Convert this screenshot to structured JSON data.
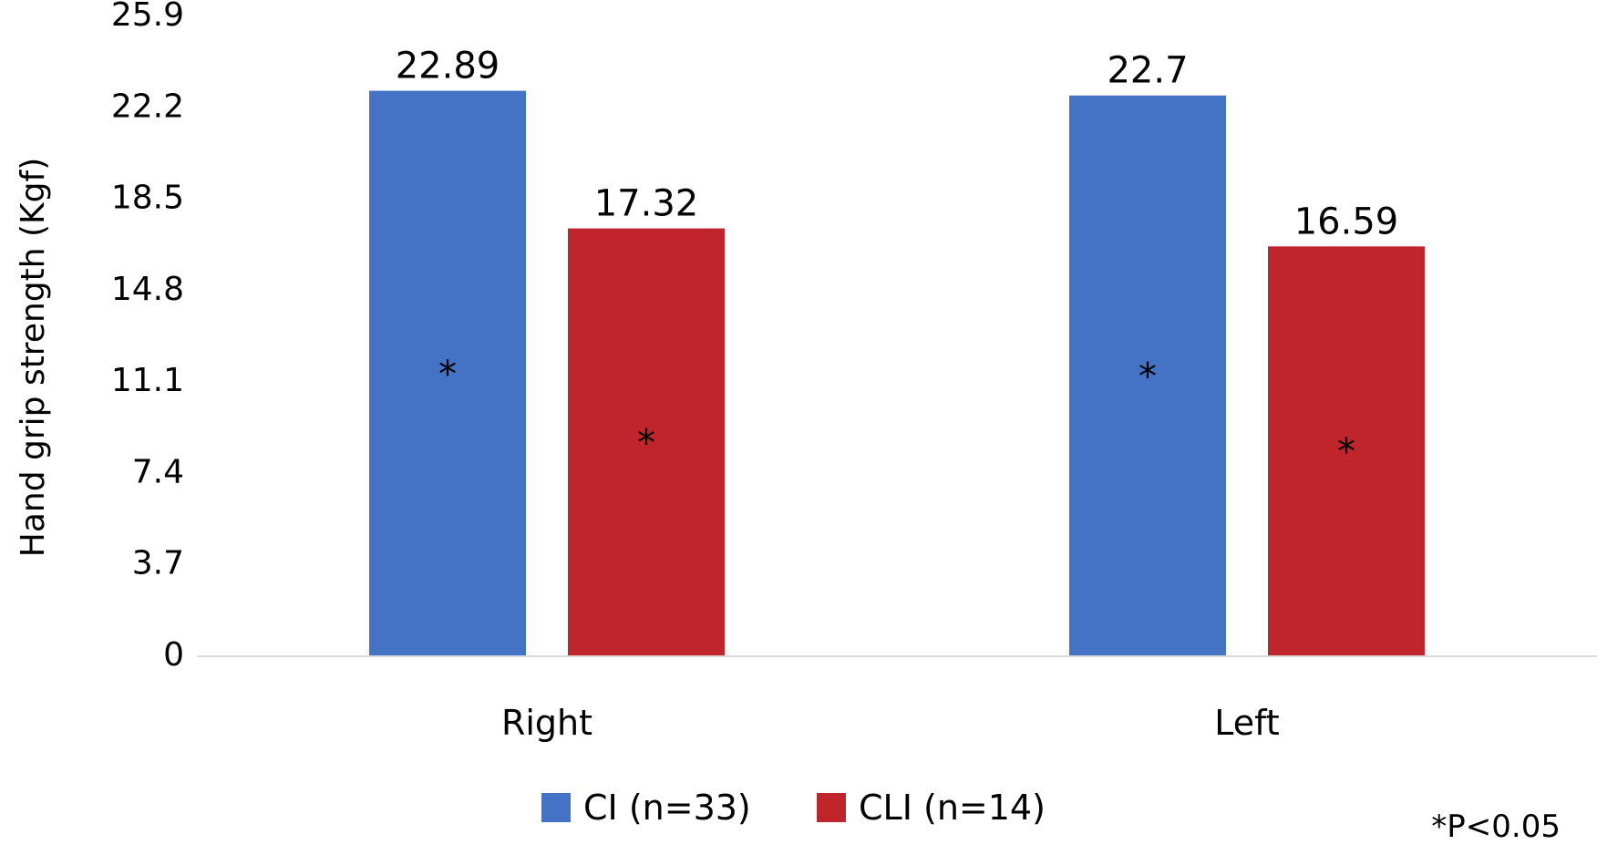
{
  "chart_data": {
    "type": "bar",
    "categories": [
      "Right",
      "Left"
    ],
    "series": [
      {
        "name": "CI (n=33)",
        "color": "#4472C4",
        "values": [
          22.89,
          22.7
        ],
        "labels": [
          "22.89",
          "22.7"
        ],
        "markers": [
          "*",
          "*"
        ]
      },
      {
        "name": "CLI (n=14)",
        "color": "#C0252B",
        "values": [
          17.32,
          16.59
        ],
        "labels": [
          "17.32",
          "16.59"
        ],
        "markers": [
          "*",
          "*"
        ]
      }
    ],
    "ylabel": "Hand grip strength (Kgf)",
    "xlabel": "",
    "ylim": [
      0,
      25.9
    ],
    "yticks": [
      "0",
      "3.7",
      "7.4",
      "11.1",
      "14.8",
      "18.5",
      "22.2",
      "25.9"
    ],
    "legend_position": "bottom",
    "grid": false,
    "annotation": "*P<0.05"
  }
}
